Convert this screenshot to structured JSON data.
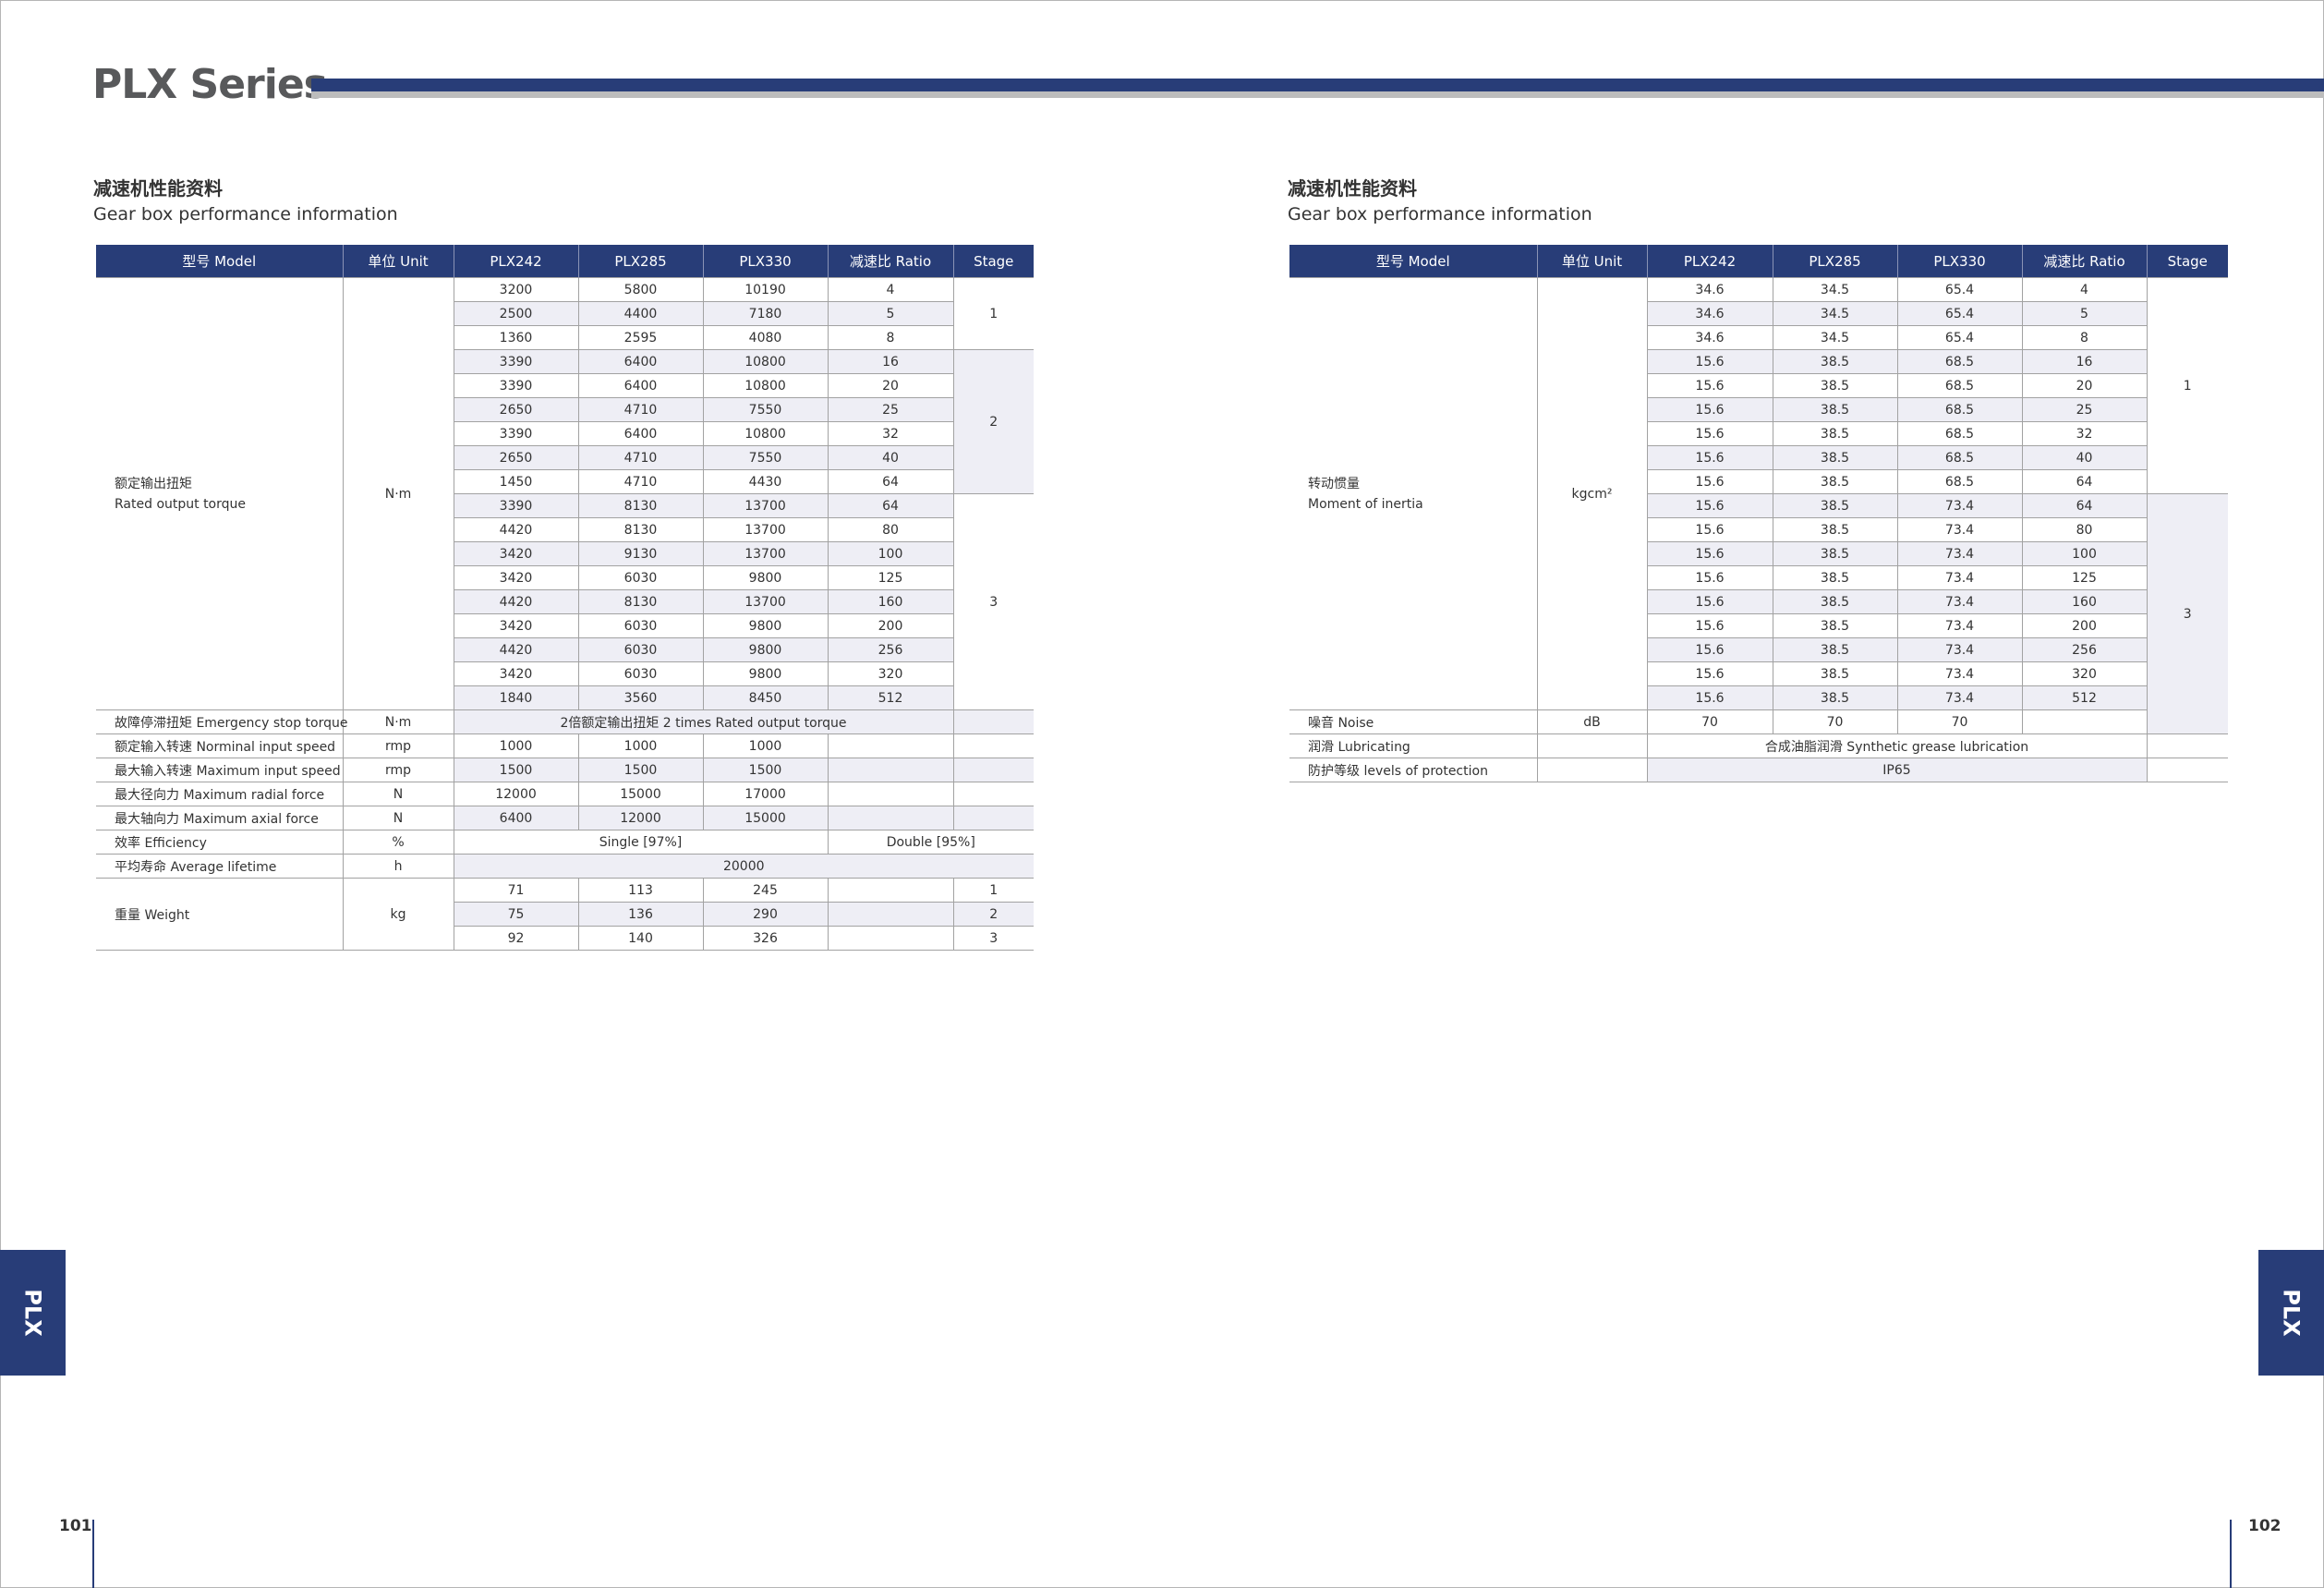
{
  "header": {
    "series_title": "PLX Series"
  },
  "side_tab_label": "PLX",
  "page_numbers": {
    "left": "101",
    "right": "102"
  },
  "colors": {
    "brand_blue": "#283d78",
    "row_shade": "#eeeef5",
    "rule_gray": "#bcbcbc"
  },
  "left": {
    "heading_cn": "减速机性能资料",
    "heading_en": "Gear box performance information",
    "columns": [
      "型号 Model",
      "单位 Unit",
      "PLX242",
      "PLX285",
      "PLX330",
      "减速比 Ratio",
      "Stage"
    ],
    "torque": {
      "label_cn": "额定输出扭矩",
      "label_en": "Rated output torque",
      "unit": "N·m",
      "groups": [
        {
          "stage": "1",
          "rows": [
            [
              "3200",
              "5800",
              "10190",
              "4"
            ],
            [
              "2500",
              "4400",
              "7180",
              "5"
            ],
            [
              "1360",
              "2595",
              "4080",
              "8"
            ]
          ]
        },
        {
          "stage": "2",
          "rows": [
            [
              "3390",
              "6400",
              "10800",
              "16"
            ],
            [
              "3390",
              "6400",
              "10800",
              "20"
            ],
            [
              "2650",
              "4710",
              "7550",
              "25"
            ],
            [
              "3390",
              "6400",
              "10800",
              "32"
            ],
            [
              "2650",
              "4710",
              "7550",
              "40"
            ],
            [
              "1450",
              "4710",
              "4430",
              "64"
            ]
          ]
        },
        {
          "stage": "3",
          "rows": [
            [
              "3390",
              "8130",
              "13700",
              "64"
            ],
            [
              "4420",
              "8130",
              "13700",
              "80"
            ],
            [
              "3420",
              "9130",
              "13700",
              "100"
            ],
            [
              "3420",
              "6030",
              "9800",
              "125"
            ],
            [
              "4420",
              "8130",
              "13700",
              "160"
            ],
            [
              "3420",
              "6030",
              "9800",
              "200"
            ],
            [
              "4420",
              "6030",
              "9800",
              "256"
            ],
            [
              "3420",
              "6030",
              "9800",
              "320"
            ],
            [
              "1840",
              "3560",
              "8450",
              "512"
            ]
          ]
        }
      ]
    },
    "emergency_stop": {
      "label": "故障停滞扭矩 Emergency stop torque",
      "unit": "N·m",
      "value": "2倍额定输出扭矩  2 times Rated output torque"
    },
    "nominal_input_speed": {
      "label": "额定输入转速 Norminal input speed",
      "unit": "rmp",
      "values": [
        "1000",
        "1000",
        "1000"
      ]
    },
    "max_input_speed": {
      "label": "最大输入转速 Maximum input speed",
      "unit": "rmp",
      "values": [
        "1500",
        "1500",
        "1500"
      ]
    },
    "max_radial_force": {
      "label": "最大径向力 Maximum radial force",
      "unit": "N",
      "values": [
        "12000",
        "15000",
        "17000"
      ]
    },
    "max_axial_force": {
      "label": "最大轴向力 Maximum axial force",
      "unit": "N",
      "values": [
        "6400",
        "12000",
        "15000"
      ]
    },
    "efficiency": {
      "label": "效率 Efficiency",
      "unit": "%",
      "single": "Single [97%]",
      "double": "Double [95%]"
    },
    "lifetime": {
      "label": "平均寿命 Average lifetime",
      "unit": "h",
      "value": "20000"
    },
    "weight": {
      "label": "重量 Weight",
      "unit": "kg",
      "rows": [
        {
          "values": [
            "71",
            "113",
            "245"
          ],
          "stage": "1"
        },
        {
          "values": [
            "75",
            "136",
            "290"
          ],
          "stage": "2"
        },
        {
          "values": [
            "92",
            "140",
            "326"
          ],
          "stage": "3"
        }
      ]
    }
  },
  "right": {
    "heading_cn": "减速机性能资料",
    "heading_en": "Gear box performance information",
    "columns": [
      "型号 Model",
      "单位 Unit",
      "PLX242",
      "PLX285",
      "PLX330",
      "减速比 Ratio",
      "Stage"
    ],
    "inertia": {
      "label_cn": "转动惯量",
      "label_en": "Moment of inertia",
      "unit": "kgcm²",
      "groups": [
        {
          "stage": "1",
          "rows": [
            [
              "34.6",
              "34.5",
              "65.4",
              "4"
            ],
            [
              "34.6",
              "34.5",
              "65.4",
              "5"
            ],
            [
              "34.6",
              "34.5",
              "65.4",
              "8"
            ],
            [
              "15.6",
              "38.5",
              "68.5",
              "16"
            ],
            [
              "15.6",
              "38.5",
              "68.5",
              "20"
            ],
            [
              "15.6",
              "38.5",
              "68.5",
              "25"
            ],
            [
              "15.6",
              "38.5",
              "68.5",
              "32"
            ],
            [
              "15.6",
              "38.5",
              "68.5",
              "40"
            ],
            [
              "15.6",
              "38.5",
              "68.5",
              "64"
            ]
          ]
        },
        {
          "stage": "3",
          "rows": [
            [
              "15.6",
              "38.5",
              "73.4",
              "64"
            ],
            [
              "15.6",
              "38.5",
              "73.4",
              "80"
            ],
            [
              "15.6",
              "38.5",
              "73.4",
              "100"
            ],
            [
              "15.6",
              "38.5",
              "73.4",
              "125"
            ],
            [
              "15.6",
              "38.5",
              "73.4",
              "160"
            ],
            [
              "15.6",
              "38.5",
              "73.4",
              "200"
            ],
            [
              "15.6",
              "38.5",
              "73.4",
              "256"
            ],
            [
              "15.6",
              "38.5",
              "73.4",
              "320"
            ],
            [
              "15.6",
              "38.5",
              "73.4",
              "512"
            ]
          ]
        }
      ]
    },
    "noise": {
      "label": "噪音 Noise",
      "unit": "dB",
      "values": [
        "70",
        "70",
        "70"
      ]
    },
    "lubricating": {
      "label": "润滑 Lubricating",
      "unit": "",
      "value": "合成油脂润滑 Synthetic grease lubrication"
    },
    "protection": {
      "label": "防护等级 levels of protection",
      "unit": "",
      "value": "IP65"
    }
  }
}
